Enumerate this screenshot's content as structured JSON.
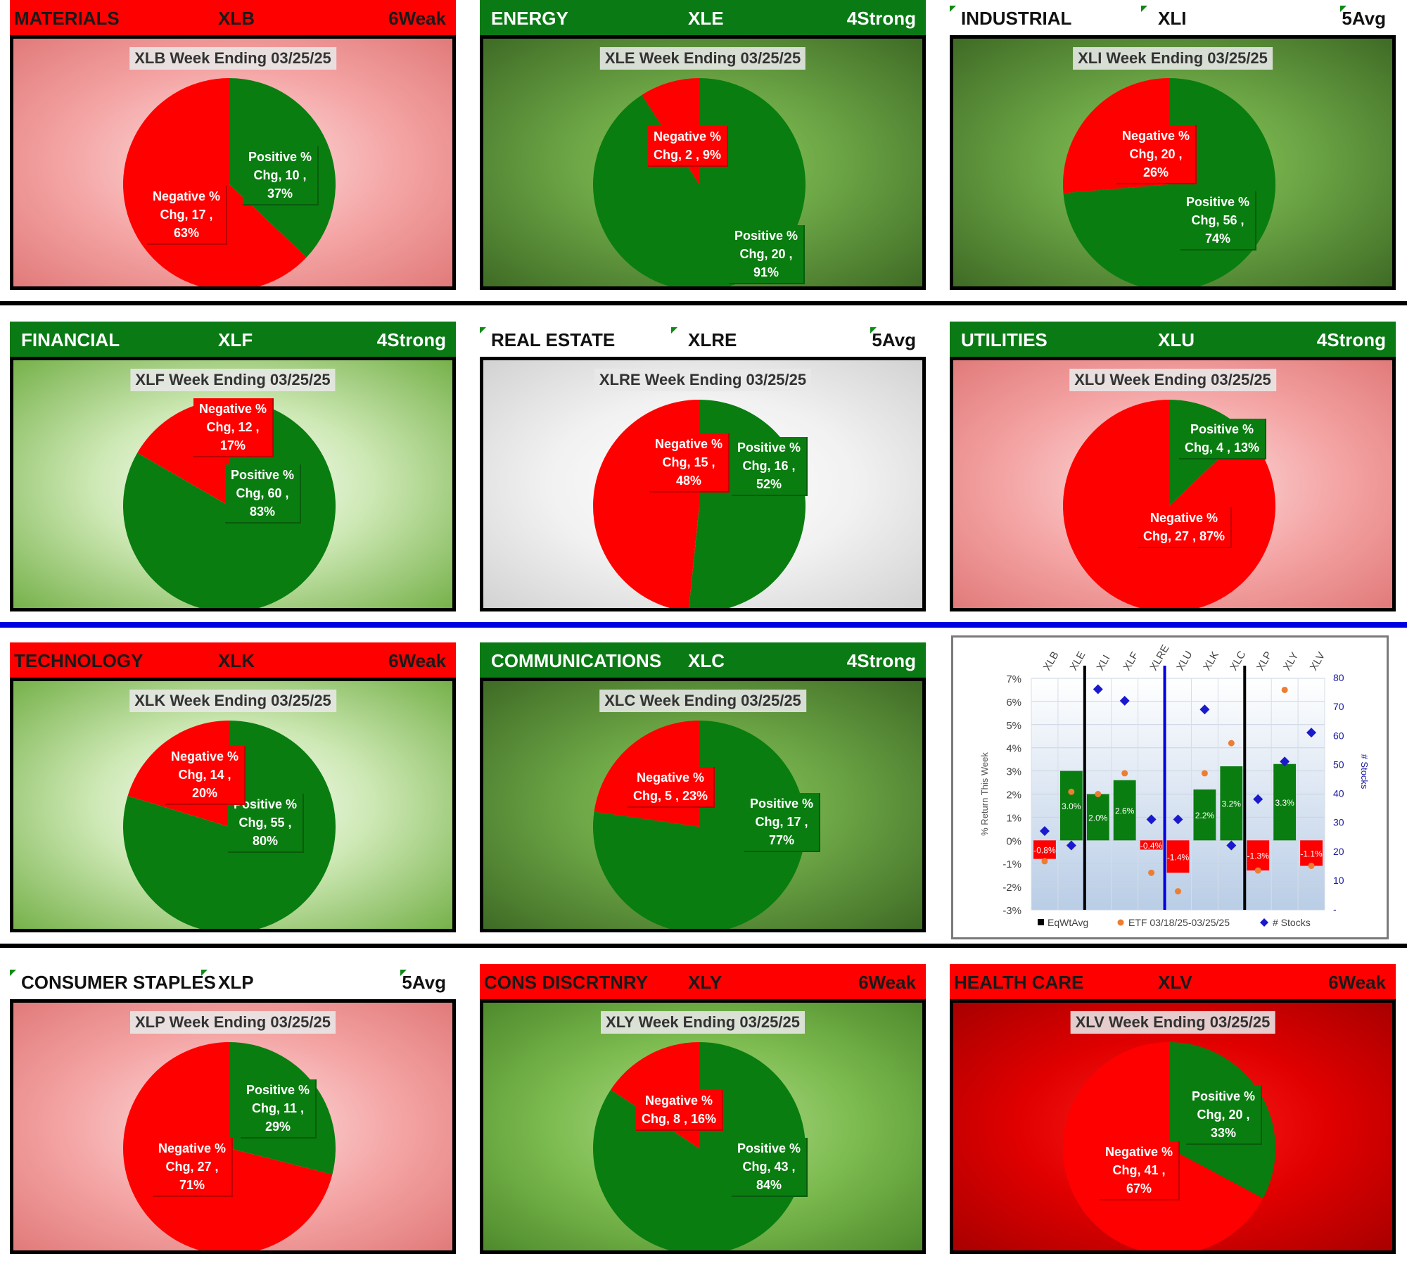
{
  "panels": [
    {
      "sector": "MATERIALS",
      "etf": "XLB",
      "rating": "6Weak",
      "header_style": "red",
      "bg": "pink",
      "title": "XLB Week Ending 03/25/25",
      "positive": {
        "count": 10,
        "pct": "37%"
      },
      "negative": {
        "count": 17,
        "pct": "63%"
      }
    },
    {
      "sector": "ENERGY",
      "etf": "XLE",
      "rating": "4Strong",
      "header_style": "green",
      "bg": "gdark",
      "title": "XLE Week Ending 03/25/25",
      "positive": {
        "count": 20,
        "pct": "91%"
      },
      "negative": {
        "count": 2,
        "pct": "9%"
      }
    },
    {
      "sector": "INDUSTRIAL",
      "etf": "XLI",
      "rating": "5Avg",
      "header_style": "white",
      "bg": "gdark",
      "title": "XLI Week Ending 03/25/25",
      "positive": {
        "count": 56,
        "pct": "74%"
      },
      "negative": {
        "count": 20,
        "pct": "26%"
      }
    },
    {
      "sector": "FINANCIAL",
      "etf": "XLF",
      "rating": "4Strong",
      "header_style": "green",
      "bg": "glight",
      "title": "XLF Week Ending 03/25/25",
      "positive": {
        "count": 60,
        "pct": "83%"
      },
      "negative": {
        "count": 12,
        "pct": "17%"
      }
    },
    {
      "sector": "REAL ESTATE",
      "etf": "XLRE",
      "rating": "5Avg",
      "header_style": "white",
      "bg": "gray",
      "title": "XLRE Week Ending 03/25/25",
      "positive": {
        "count": 16,
        "pct": "52%"
      },
      "negative": {
        "count": 15,
        "pct": "48%"
      }
    },
    {
      "sector": "UTILITIES",
      "etf": "XLU",
      "rating": "4Strong",
      "header_style": "green",
      "bg": "pink",
      "title": "XLU Week Ending 03/25/25",
      "positive": {
        "count": 4,
        "pct": "13%"
      },
      "negative": {
        "count": 27,
        "pct": "87%"
      }
    },
    {
      "sector": "TECHNOLOGY",
      "etf": "XLK",
      "rating": "6Weak",
      "header_style": "red",
      "bg": "glight",
      "title": "XLK Week Ending 03/25/25",
      "positive": {
        "count": 55,
        "pct": "80%"
      },
      "negative": {
        "count": 14,
        "pct": "20%"
      }
    },
    {
      "sector": "COMMUNICATIONS",
      "etf": "XLC",
      "rating": "4Strong",
      "header_style": "green",
      "bg": "gdark",
      "title": "XLC Week Ending 03/25/25",
      "positive": {
        "count": 17,
        "pct": "77%"
      },
      "negative": {
        "count": 5,
        "pct": "23%"
      }
    },
    {
      "sector": "CONSUMER STAPLES",
      "etf": "XLP",
      "rating": "5Avg",
      "header_style": "white",
      "bg": "pink",
      "title": "XLP Week Ending 03/25/25",
      "positive": {
        "count": 11,
        "pct": "29%"
      },
      "negative": {
        "count": 27,
        "pct": "71%"
      }
    },
    {
      "sector": "CONS DISCRTNRY",
      "etf": "XLY",
      "rating": "6Weak",
      "header_style": "red",
      "bg": "gmid",
      "title": "XLY Week Ending 03/25/25",
      "positive": {
        "count": 43,
        "pct": "84%"
      },
      "negative": {
        "count": 8,
        "pct": "16%"
      }
    },
    {
      "sector": "HEALTH CARE",
      "etf": "XLV",
      "rating": "6Weak",
      "header_style": "red",
      "bg": "red",
      "title": "XLV Week Ending 03/25/25",
      "positive": {
        "count": 20,
        "pct": "33%"
      },
      "negative": {
        "count": 41,
        "pct": "67%"
      }
    }
  ],
  "labels": {
    "positive_line1": "Positive %",
    "negative_line1": "Negative %",
    "chg": "Chg,"
  },
  "chart_data": [
    {
      "type": "pie",
      "title": "XLB Week Ending 03/25/25",
      "categories": [
        "Positive % Chg",
        "Negative % Chg"
      ],
      "values": [
        10,
        17
      ],
      "percents": [
        "37%",
        "63%"
      ]
    },
    {
      "type": "pie",
      "title": "XLE Week Ending 03/25/25",
      "categories": [
        "Positive % Chg",
        "Negative % Chg"
      ],
      "values": [
        20,
        2
      ],
      "percents": [
        "91%",
        "9%"
      ]
    },
    {
      "type": "pie",
      "title": "XLI Week Ending 03/25/25",
      "categories": [
        "Positive % Chg",
        "Negative % Chg"
      ],
      "values": [
        56,
        20
      ],
      "percents": [
        "74%",
        "26%"
      ]
    },
    {
      "type": "pie",
      "title": "XLF Week Ending 03/25/25",
      "categories": [
        "Positive % Chg",
        "Negative % Chg"
      ],
      "values": [
        60,
        12
      ],
      "percents": [
        "83%",
        "17%"
      ]
    },
    {
      "type": "pie",
      "title": "XLRE Week Ending 03/25/25",
      "categories": [
        "Positive % Chg",
        "Negative % Chg"
      ],
      "values": [
        16,
        15
      ],
      "percents": [
        "52%",
        "48%"
      ]
    },
    {
      "type": "pie",
      "title": "XLU Week Ending 03/25/25",
      "categories": [
        "Positive % Chg",
        "Negative % Chg"
      ],
      "values": [
        4,
        27
      ],
      "percents": [
        "13%",
        "87%"
      ]
    },
    {
      "type": "pie",
      "title": "XLK Week Ending 03/25/25",
      "categories": [
        "Positive % Chg",
        "Negative % Chg"
      ],
      "values": [
        55,
        14
      ],
      "percents": [
        "80%",
        "20%"
      ]
    },
    {
      "type": "pie",
      "title": "XLC Week Ending 03/25/25",
      "categories": [
        "Positive % Chg",
        "Negative % Chg"
      ],
      "values": [
        17,
        5
      ],
      "percents": [
        "77%",
        "23%"
      ]
    },
    {
      "type": "pie",
      "title": "XLP Week Ending 03/25/25",
      "categories": [
        "Positive % Chg",
        "Negative % Chg"
      ],
      "values": [
        11,
        27
      ],
      "percents": [
        "29%",
        "71%"
      ]
    },
    {
      "type": "pie",
      "title": "XLY Week Ending 03/25/25",
      "categories": [
        "Positive % Chg",
        "Negative % Chg"
      ],
      "values": [
        43,
        8
      ],
      "percents": [
        "84%",
        "16%"
      ]
    },
    {
      "type": "pie",
      "title": "XLV Week Ending 03/25/25",
      "categories": [
        "Positive % Chg",
        "Negative % Chg"
      ],
      "values": [
        20,
        41
      ],
      "percents": [
        "33%",
        "67%"
      ]
    },
    {
      "type": "bar",
      "title": "",
      "categories": [
        "XLB",
        "XLE",
        "XLI",
        "XLF",
        "XLRE",
        "XLU",
        "XLK",
        "XLC",
        "XLP",
        "XLY",
        "XLV"
      ],
      "series": [
        {
          "name": "EqWtAvg",
          "kind": "bar",
          "axis": "left",
          "values": [
            -0.8,
            3.0,
            2.0,
            2.6,
            -0.4,
            -1.4,
            2.2,
            3.2,
            -1.3,
            3.3,
            -1.1
          ],
          "labels": [
            "-0.8%",
            "3.0%",
            "2.0%",
            "2.6%",
            "-0.4%",
            "-1.4%",
            "2.2%",
            "3.2%",
            "-1.3%",
            "3.3%",
            "-1.1%"
          ]
        },
        {
          "name": "ETF 03/18/25-03/25/25",
          "kind": "scatter",
          "axis": "left",
          "values": [
            -0.9,
            2.1,
            2.0,
            2.9,
            -1.4,
            -2.2,
            2.9,
            4.2,
            -1.3,
            6.5,
            -1.1
          ]
        },
        {
          "name": "# Stocks",
          "kind": "scatter",
          "axis": "right",
          "values": [
            27,
            22,
            76,
            72,
            31,
            31,
            69,
            22,
            38,
            51,
            61
          ]
        }
      ],
      "ylabel": "% Return This Week",
      "y2label": "# Stocks",
      "ylim": [
        -3,
        7
      ],
      "yticks": [
        "7%",
        "6%",
        "5%",
        "4%",
        "3%",
        "2%",
        "1%",
        "0%",
        "-1%",
        "-2%",
        "-3%"
      ],
      "y2lim": [
        0,
        80
      ],
      "y2ticks": [
        "80",
        "70",
        "60",
        "50",
        "40",
        "30",
        "20",
        "10",
        "-"
      ],
      "legend": [
        "EqWtAvg",
        "ETF 03/18/25-03/25/25",
        "# Stocks"
      ],
      "legend_position": "bottom",
      "separators": {
        "black_after": [
          "XLE",
          "XLC"
        ],
        "blue_after": "XLRE"
      }
    }
  ]
}
